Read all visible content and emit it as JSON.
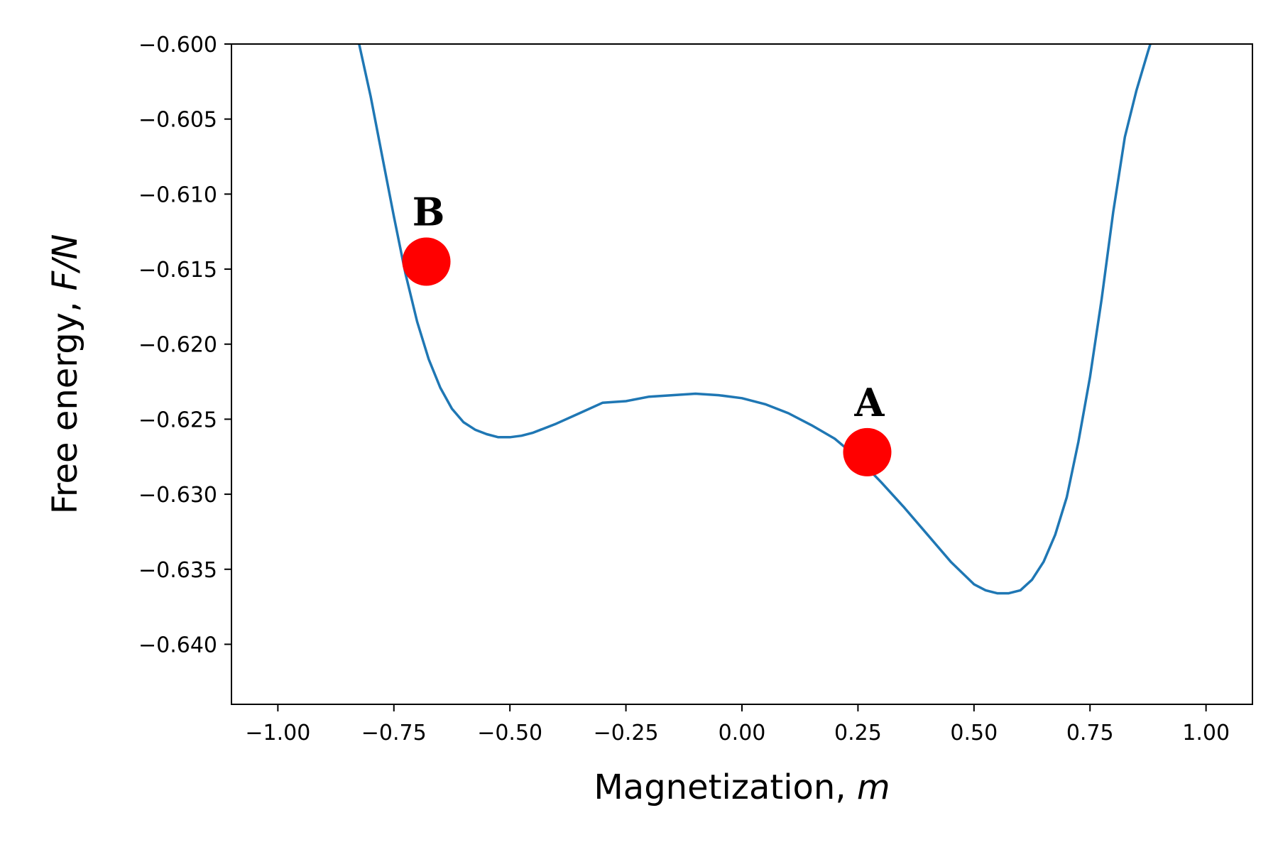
{
  "chart_data": {
    "type": "line",
    "xlabel_text": "Magnetization, ",
    "xlabel_var": "m",
    "ylabel_text": "Free energy, ",
    "ylabel_var": "F/N",
    "xlim": [
      -1.1,
      1.1
    ],
    "ylim": [
      -0.644,
      -0.6
    ],
    "x_ticks": [
      -1.0,
      -0.75,
      -0.5,
      -0.25,
      0.0,
      0.25,
      0.5,
      0.75,
      1.0
    ],
    "x_tick_labels": [
      "−1.00",
      "−0.75",
      "−0.50",
      "−0.25",
      "0.00",
      "0.25",
      "0.50",
      "0.75",
      "1.00"
    ],
    "y_ticks": [
      -0.6,
      -0.605,
      -0.61,
      -0.615,
      -0.62,
      -0.625,
      -0.63,
      -0.635,
      -0.64
    ],
    "y_tick_labels": [
      "−0.600",
      "−0.605",
      "−0.610",
      "−0.615",
      "−0.620",
      "−0.625",
      "−0.630",
      "−0.635",
      "−0.640"
    ],
    "series": [
      {
        "name": "free-energy",
        "color": "#1f77b4",
        "x": [
          -0.825,
          -0.8,
          -0.775,
          -0.75,
          -0.725,
          -0.7,
          -0.675,
          -0.65,
          -0.625,
          -0.6,
          -0.575,
          -0.55,
          -0.525,
          -0.5,
          -0.475,
          -0.45,
          -0.4,
          -0.35,
          -0.3,
          -0.25,
          -0.2,
          -0.15,
          -0.1,
          -0.05,
          0.0,
          0.05,
          0.1,
          0.15,
          0.2,
          0.25,
          0.3,
          0.35,
          0.4,
          0.45,
          0.5,
          0.525,
          0.55,
          0.575,
          0.6,
          0.625,
          0.65,
          0.675,
          0.7,
          0.725,
          0.75,
          0.775,
          0.8,
          0.825,
          0.85,
          0.875,
          0.88
        ],
        "y": [
          -0.6,
          -0.6035,
          -0.6075,
          -0.6115,
          -0.6153,
          -0.6185,
          -0.621,
          -0.6229,
          -0.6243,
          -0.6252,
          -0.6257,
          -0.626,
          -0.6262,
          -0.6262,
          -0.6261,
          -0.6259,
          -0.6253,
          -0.6246,
          -0.6239,
          -0.6238,
          -0.6235,
          -0.6234,
          -0.6233,
          -0.6234,
          -0.6236,
          -0.624,
          -0.6246,
          -0.6254,
          -0.6263,
          -0.6276,
          -0.6292,
          -0.6309,
          -0.6327,
          -0.6345,
          -0.636,
          -0.6364,
          -0.6366,
          -0.6366,
          -0.6364,
          -0.6357,
          -0.6345,
          -0.6327,
          -0.6302,
          -0.6265,
          -0.6222,
          -0.617,
          -0.6112,
          -0.6062,
          -0.6031,
          -0.6005,
          -0.6
        ]
      }
    ],
    "points": [
      {
        "label": "A",
        "x": 0.27,
        "y": -0.6272,
        "color": "#ff0000"
      },
      {
        "label": "B",
        "x": -0.68,
        "y": -0.6145,
        "color": "#ff0000"
      }
    ]
  }
}
